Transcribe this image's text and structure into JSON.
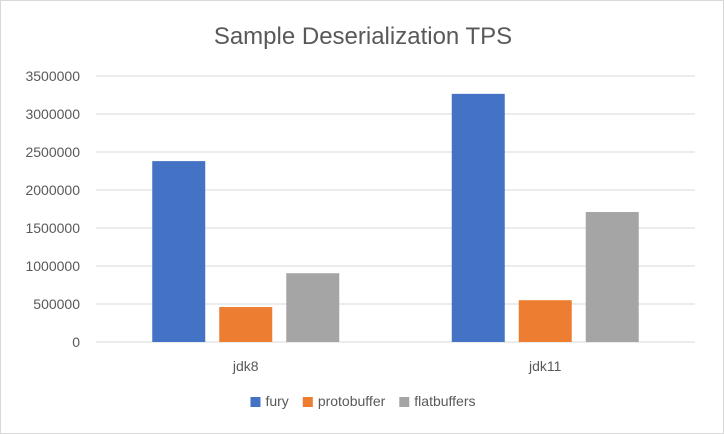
{
  "chart_data": {
    "type": "bar",
    "title": "Sample Deserialization TPS",
    "xlabel": "",
    "ylabel": "",
    "categories": [
      "jdk8",
      "jdk11"
    ],
    "series": [
      {
        "name": "fury",
        "values": [
          2380000,
          3265000
        ],
        "color": "#4472c4"
      },
      {
        "name": "protobuffer",
        "values": [
          460000,
          550000
        ],
        "color": "#ed7d31"
      },
      {
        "name": "flatbuffers",
        "values": [
          905000,
          1710000
        ],
        "color": "#a5a5a5"
      }
    ],
    "ylim": [
      0,
      3500000
    ],
    "yticks": [
      0,
      500000,
      1000000,
      1500000,
      2000000,
      2500000,
      3000000,
      3500000
    ],
    "grid": true,
    "legend_position": "bottom"
  }
}
